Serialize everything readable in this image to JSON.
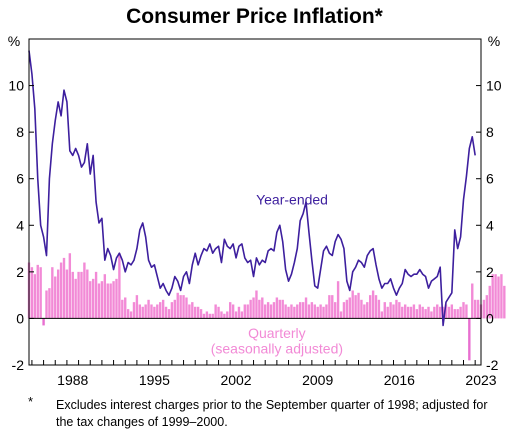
{
  "chart_data": {
    "type": "bar+line",
    "title": "Consumer Price Inflation*",
    "y_unit_left": "%",
    "y_unit_right": "%",
    "ylim": [
      -2,
      12
    ],
    "yticks": [
      -2,
      0,
      2,
      4,
      6,
      8,
      10
    ],
    "ytick_labels": [
      "-2",
      "0",
      "2",
      "4",
      "6",
      "8",
      "10"
    ],
    "xlim": [
      1984.75,
      2023.5
    ],
    "xticks": [
      1988,
      1995,
      2002,
      2009,
      2016,
      2023
    ],
    "xtick_labels": [
      "1988",
      "1995",
      "2002",
      "2009",
      "2016",
      "2023"
    ],
    "grid": false,
    "series": [
      {
        "name": "Year-ended",
        "kind": "line",
        "color": "#3d1f9e",
        "points": [
          [
            1984.75,
            11.5
          ],
          [
            1985.0,
            10.5
          ],
          [
            1985.25,
            9.0
          ],
          [
            1985.5,
            6.0
          ],
          [
            1985.75,
            4.0
          ],
          [
            1986.0,
            3.5
          ],
          [
            1986.25,
            2.7
          ],
          [
            1986.5,
            6.0
          ],
          [
            1986.75,
            7.5
          ],
          [
            1987.0,
            8.5
          ],
          [
            1987.25,
            9.3
          ],
          [
            1987.5,
            8.7
          ],
          [
            1987.75,
            9.8
          ],
          [
            1988.0,
            9.3
          ],
          [
            1988.25,
            7.2
          ],
          [
            1988.5,
            7.0
          ],
          [
            1988.75,
            7.3
          ],
          [
            1989.0,
            7.0
          ],
          [
            1989.25,
            6.5
          ],
          [
            1989.5,
            6.7
          ],
          [
            1989.75,
            7.5
          ],
          [
            1990.0,
            6.2
          ],
          [
            1990.25,
            7.0
          ],
          [
            1990.5,
            5.0
          ],
          [
            1990.75,
            4.1
          ],
          [
            1991.0,
            4.3
          ],
          [
            1991.25,
            2.5
          ],
          [
            1991.5,
            3.0
          ],
          [
            1991.75,
            2.7
          ],
          [
            1992.0,
            2.1
          ],
          [
            1992.25,
            2.6
          ],
          [
            1992.5,
            2.8
          ],
          [
            1992.75,
            2.5
          ],
          [
            1993.0,
            2.0
          ],
          [
            1993.25,
            2.4
          ],
          [
            1993.5,
            2.3
          ],
          [
            1993.75,
            2.5
          ],
          [
            1994.0,
            3.0
          ],
          [
            1994.25,
            3.8
          ],
          [
            1994.5,
            4.1
          ],
          [
            1994.75,
            3.5
          ],
          [
            1995.0,
            2.5
          ],
          [
            1995.25,
            2.2
          ],
          [
            1995.5,
            2.3
          ],
          [
            1995.75,
            1.8
          ],
          [
            1996.0,
            1.3
          ],
          [
            1996.25,
            1.5
          ],
          [
            1996.5,
            1.2
          ],
          [
            1996.75,
            1.0
          ],
          [
            1997.0,
            1.3
          ],
          [
            1997.25,
            1.8
          ],
          [
            1997.5,
            1.6
          ],
          [
            1997.75,
            1.2
          ],
          [
            1998.0,
            1.8
          ],
          [
            1998.25,
            2.0
          ],
          [
            1998.5,
            1.5
          ],
          [
            1998.75,
            2.3
          ],
          [
            1999.0,
            2.8
          ],
          [
            1999.25,
            2.3
          ],
          [
            1999.5,
            2.7
          ],
          [
            1999.75,
            3.0
          ],
          [
            2000.0,
            2.9
          ],
          [
            2000.25,
            3.2
          ],
          [
            2000.5,
            2.8
          ],
          [
            2000.75,
            3.0
          ],
          [
            2001.0,
            3.1
          ],
          [
            2001.25,
            2.4
          ],
          [
            2001.5,
            3.4
          ],
          [
            2001.75,
            3.1
          ],
          [
            2002.0,
            3.0
          ],
          [
            2002.25,
            3.2
          ],
          [
            2002.5,
            2.6
          ],
          [
            2002.75,
            3.1
          ],
          [
            2003.0,
            3.2
          ],
          [
            2003.25,
            2.6
          ],
          [
            2003.5,
            2.4
          ],
          [
            2003.75,
            2.5
          ],
          [
            2004.0,
            1.8
          ],
          [
            2004.25,
            2.6
          ],
          [
            2004.5,
            2.3
          ],
          [
            2004.75,
            2.5
          ],
          [
            2005.0,
            2.4
          ],
          [
            2005.25,
            2.9
          ],
          [
            2005.5,
            3.0
          ],
          [
            2005.75,
            2.9
          ],
          [
            2006.0,
            3.7
          ],
          [
            2006.25,
            4.0
          ],
          [
            2006.5,
            3.3
          ],
          [
            2006.75,
            2.1
          ],
          [
            2007.0,
            1.6
          ],
          [
            2007.25,
            1.9
          ],
          [
            2007.5,
            2.4
          ],
          [
            2007.75,
            3.0
          ],
          [
            2008.0,
            4.2
          ],
          [
            2008.25,
            4.5
          ],
          [
            2008.5,
            5.0
          ],
          [
            2008.75,
            3.7
          ],
          [
            2009.0,
            2.5
          ],
          [
            2009.25,
            1.4
          ],
          [
            2009.5,
            1.3
          ],
          [
            2009.75,
            2.1
          ],
          [
            2010.0,
            2.9
          ],
          [
            2010.25,
            3.1
          ],
          [
            2010.5,
            2.8
          ],
          [
            2010.75,
            2.7
          ],
          [
            2011.0,
            3.3
          ],
          [
            2011.25,
            3.6
          ],
          [
            2011.5,
            3.4
          ],
          [
            2011.75,
            3.0
          ],
          [
            2012.0,
            1.6
          ],
          [
            2012.25,
            1.2
          ],
          [
            2012.5,
            2.0
          ],
          [
            2012.75,
            2.2
          ],
          [
            2013.0,
            2.5
          ],
          [
            2013.25,
            2.4
          ],
          [
            2013.5,
            2.2
          ],
          [
            2013.75,
            2.7
          ],
          [
            2014.0,
            2.9
          ],
          [
            2014.25,
            3.0
          ],
          [
            2014.5,
            2.3
          ],
          [
            2014.75,
            1.7
          ],
          [
            2015.0,
            1.3
          ],
          [
            2015.25,
            1.5
          ],
          [
            2015.5,
            1.5
          ],
          [
            2015.75,
            1.7
          ],
          [
            2016.0,
            1.3
          ],
          [
            2016.25,
            1.0
          ],
          [
            2016.5,
            1.3
          ],
          [
            2016.75,
            1.5
          ],
          [
            2017.0,
            2.1
          ],
          [
            2017.25,
            1.9
          ],
          [
            2017.5,
            1.8
          ],
          [
            2017.75,
            1.9
          ],
          [
            2018.0,
            1.9
          ],
          [
            2018.25,
            2.1
          ],
          [
            2018.5,
            1.9
          ],
          [
            2018.75,
            1.8
          ],
          [
            2019.0,
            1.3
          ],
          [
            2019.25,
            1.6
          ],
          [
            2019.5,
            1.7
          ],
          [
            2019.75,
            1.8
          ],
          [
            2020.0,
            2.2
          ],
          [
            2020.25,
            -0.3
          ],
          [
            2020.5,
            0.7
          ],
          [
            2020.75,
            0.9
          ],
          [
            2021.0,
            1.1
          ],
          [
            2021.25,
            3.8
          ],
          [
            2021.5,
            3.0
          ],
          [
            2021.75,
            3.5
          ],
          [
            2022.0,
            5.1
          ],
          [
            2022.25,
            6.1
          ],
          [
            2022.5,
            7.3
          ],
          [
            2022.75,
            7.8
          ],
          [
            2023.0,
            7.0
          ]
        ]
      },
      {
        "name": "Quarterly",
        "kind": "bar",
        "color": "#f28ad6",
        "bar_color_negative": "#e86fd0",
        "x_start": 1984.75,
        "x_step": 0.25,
        "values": [
          2.4,
          2.2,
          1.9,
          2.3,
          2.2,
          -0.3,
          1.2,
          1.3,
          2.2,
          1.8,
          2.1,
          2.4,
          2.6,
          2.1,
          2.8,
          2.0,
          1.7,
          2.0,
          2.0,
          2.4,
          2.1,
          1.6,
          1.7,
          2.0,
          1.5,
          1.6,
          1.9,
          1.5,
          1.5,
          1.6,
          1.7,
          2.8,
          0.8,
          0.9,
          0.4,
          0.3,
          0.7,
          1.0,
          0.6,
          0.5,
          0.6,
          0.8,
          0.6,
          0.5,
          0.6,
          0.7,
          0.8,
          0.5,
          0.4,
          0.7,
          0.8,
          1.1,
          1.0,
          1.0,
          0.9,
          0.6,
          0.7,
          0.5,
          0.5,
          0.4,
          0.2,
          0.3,
          0.2,
          0.2,
          0.6,
          0.5,
          0.3,
          0.2,
          0.3,
          0.7,
          0.6,
          0.3,
          0.5,
          0.3,
          0.6,
          0.6,
          0.8,
          0.9,
          1.2,
          0.8,
          0.9,
          0.6,
          0.7,
          0.6,
          0.7,
          0.9,
          0.8,
          0.8,
          0.6,
          0.5,
          0.6,
          0.5,
          0.6,
          0.7,
          0.7,
          0.9,
          0.6,
          0.7,
          0.6,
          0.5,
          0.6,
          0.5,
          0.6,
          1.0,
          1.0,
          0.7,
          1.6,
          0.3,
          0.7,
          0.8,
          0.9,
          1.2,
          1.0,
          1.1,
          0.8,
          0.6,
          0.7,
          1.0,
          1.2,
          1.0,
          0.8,
          0.3,
          0.7,
          0.5,
          0.7,
          0.6,
          0.8,
          0.7,
          0.5,
          0.6,
          0.5,
          0.5,
          0.6,
          0.4,
          0.6,
          0.5,
          0.4,
          0.5,
          0.3,
          0.5,
          0.6,
          0.5,
          0.5,
          0.6,
          0.5,
          0.6,
          0.4,
          0.4,
          0.5,
          0.7,
          0.6,
          -1.8,
          1.5,
          0.8,
          0.8,
          0.6,
          0.8,
          1.0,
          1.4,
          1.9,
          1.9,
          1.8,
          1.9,
          1.4
        ]
      }
    ],
    "annotations": [
      {
        "text": "Year-ended",
        "color": "#3d1f9e",
        "anchor": [
          2007.3,
          4.9
        ]
      },
      {
        "text": "Quarterly",
        "color": "#f28ad6",
        "anchor": [
          2006.0,
          -0.85
        ]
      },
      {
        "text": "(seasonally adjusted)",
        "color": "#f28ad6",
        "anchor": [
          2006.0,
          -1.5
        ]
      }
    ]
  },
  "footnote": {
    "marker": "*",
    "text": "Excludes interest charges prior to the September quarter of 1998; adjusted for the tax changes of 1999–2000."
  }
}
